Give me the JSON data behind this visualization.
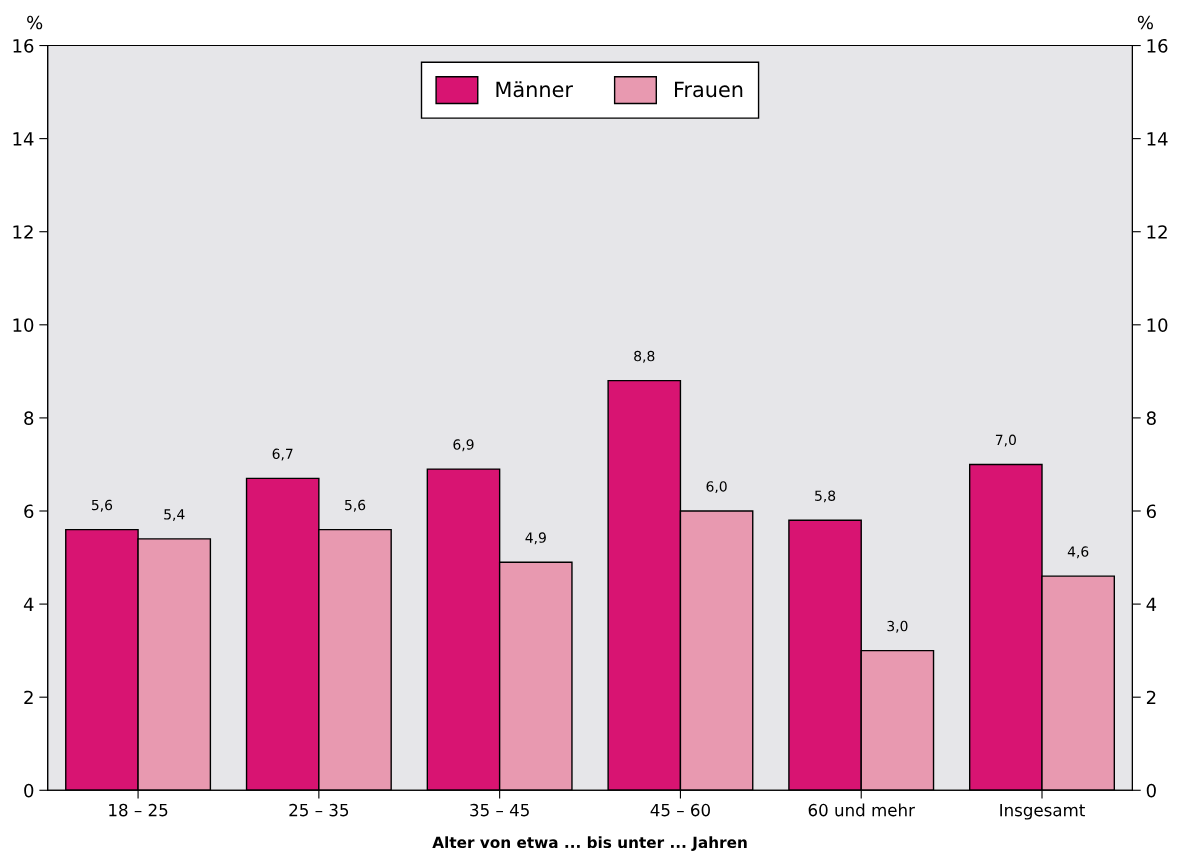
{
  "chart_data": {
    "type": "bar",
    "categories": [
      "18 – 25",
      "25 – 35",
      "35 – 45",
      "45 – 60",
      "60 und mehr",
      "Insgesamt"
    ],
    "series": [
      {
        "name": "Männer",
        "color": "#d81472",
        "values": [
          5.6,
          6.7,
          6.9,
          8.8,
          5.8,
          7.0
        ],
        "value_labels": [
          "5,6",
          "6,7",
          "6,9",
          "8,8",
          "5,8",
          "7,0"
        ]
      },
      {
        "name": "Frauen",
        "color": "#e899b0",
        "values": [
          5.4,
          5.6,
          4.9,
          6.0,
          3.0,
          4.6
        ],
        "value_labels": [
          "5,4",
          "5,6",
          "4,9",
          "6,0",
          "3,0",
          "4,6"
        ]
      }
    ],
    "xlabel": "Alter von etwa ... bis unter ... Jahren",
    "ylabel": "%",
    "y2label": "%",
    "ylim": [
      0,
      16
    ],
    "yticks": [
      0,
      2,
      4,
      6,
      8,
      10,
      12,
      14,
      16
    ],
    "y2lim": [
      0,
      16
    ],
    "y2ticks": [
      0,
      2,
      4,
      6,
      8,
      10,
      12,
      14,
      16
    ],
    "legend": "top",
    "grid": false
  }
}
